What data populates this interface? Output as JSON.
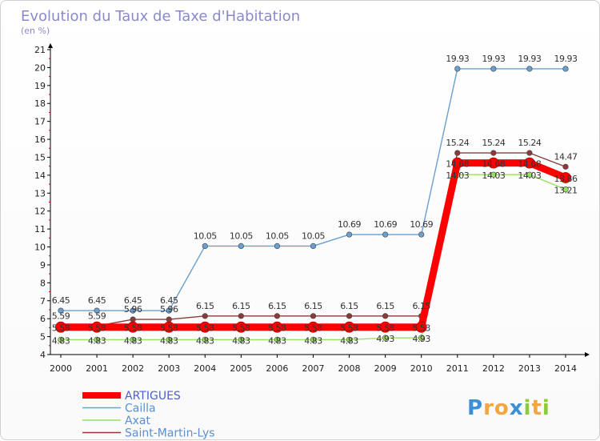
{
  "chart_data": {
    "type": "line",
    "title": "Evolution du Taux de Taxe d'Habitation",
    "subtitle": "(en %)",
    "xlabel": "",
    "ylabel": "",
    "x": [
      "2000",
      "2001",
      "2002",
      "2003",
      "2004",
      "2005",
      "2006",
      "2007",
      "2008",
      "2009",
      "2010",
      "2011",
      "2012",
      "2013",
      "2014"
    ],
    "ylim": [
      4,
      21
    ],
    "yticks": [
      "4",
      "5",
      "6",
      "7",
      "8",
      "9",
      "10",
      "11",
      "12",
      "13",
      "14",
      "15",
      "16",
      "17",
      "18",
      "19",
      "20",
      "21"
    ],
    "grid": false,
    "legend_position": "bottom-left",
    "series": [
      {
        "name": "ARTIGUES",
        "color": "#ff0000",
        "values": [
          5.53,
          5.53,
          5.53,
          5.53,
          5.53,
          5.53,
          5.53,
          5.53,
          5.53,
          5.53,
          5.53,
          14.68,
          14.68,
          14.68,
          13.86
        ],
        "labels": [
          "5.53",
          "5.53",
          "5.53",
          "5.53",
          "5.53",
          "5.53",
          "5.53",
          "5.53",
          "5.53",
          "5.53",
          "5.53",
          "14.68",
          "14.68",
          "14.68",
          "13.86"
        ]
      },
      {
        "name": "Cailla",
        "color": "#6a9fd0",
        "values": [
          6.45,
          6.45,
          6.45,
          6.45,
          10.05,
          10.05,
          10.05,
          10.05,
          10.69,
          10.69,
          10.69,
          19.93,
          19.93,
          19.93,
          19.93
        ],
        "labels": [
          "6.45",
          "6.45",
          "6.45",
          "6.45",
          "10.05",
          "10.05",
          "10.05",
          "10.05",
          "10.69",
          "10.69",
          "10.69",
          "19.93",
          "19.93",
          "19.93",
          "19.93"
        ]
      },
      {
        "name": "Axat",
        "color": "#99e060",
        "values": [
          4.83,
          4.83,
          4.83,
          4.83,
          4.83,
          4.83,
          4.83,
          4.83,
          4.83,
          4.93,
          4.93,
          14.03,
          14.03,
          14.03,
          13.21
        ],
        "labels": [
          "4.83",
          "4.83",
          "4.83",
          "4.83",
          "4.83",
          "4.83",
          "4.83",
          "4.83",
          "4.83",
          "4.93",
          "4.93",
          "14.03",
          "14.03",
          "14.03",
          "13.21"
        ]
      },
      {
        "name": "Saint-Martin-Lys",
        "color": "#8b3a3a",
        "values": [
          5.59,
          5.59,
          5.96,
          5.96,
          6.15,
          6.15,
          6.15,
          6.15,
          6.15,
          6.15,
          6.15,
          15.24,
          15.24,
          15.24,
          14.47
        ],
        "labels": [
          "5.59",
          "5.59",
          "5.96",
          "5.96",
          "6.15",
          "6.15",
          "6.15",
          "6.15",
          "6.15",
          "6.15",
          "6.15",
          "15.24",
          "15.24",
          "15.24",
          "14.47"
        ]
      }
    ]
  },
  "logo": {
    "letters": [
      "P",
      "r",
      "o",
      "x",
      "i",
      "t",
      "i"
    ],
    "colors": [
      "#3d8fd6",
      "#f2a640",
      "#f2a640",
      "#3d8fd6",
      "#8ccc3c",
      "#f2a640",
      "#8ccc3c"
    ]
  }
}
